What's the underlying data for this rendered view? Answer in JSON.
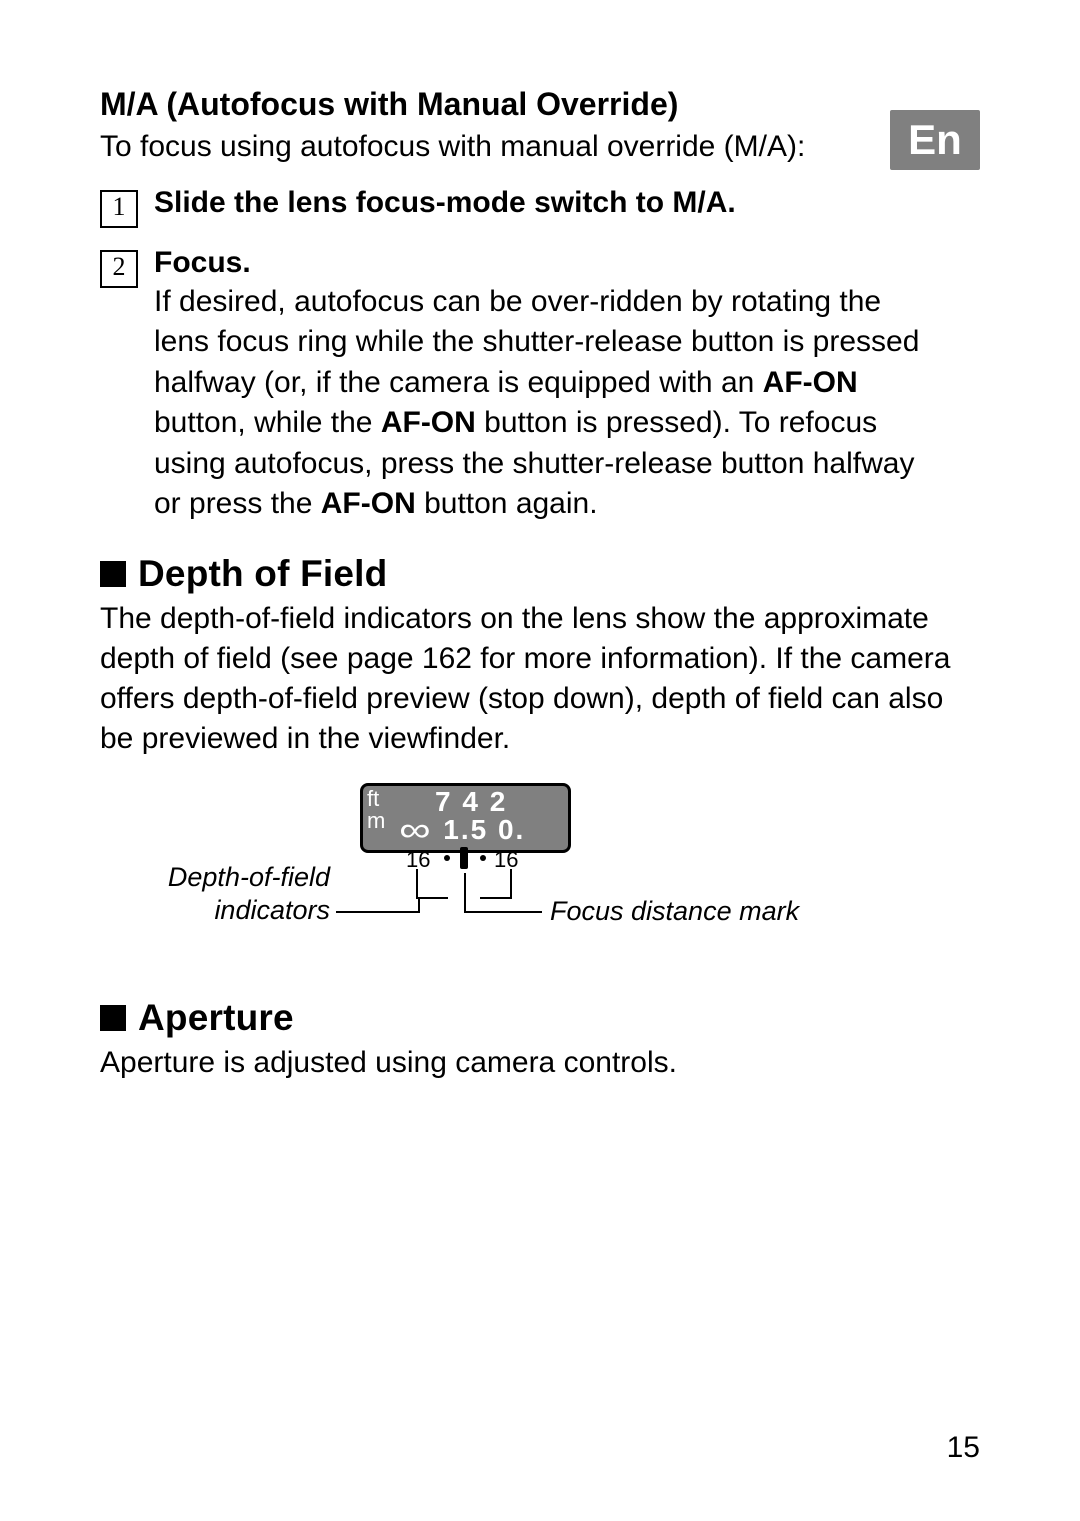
{
  "lang_tab": "En",
  "page_number": "15",
  "ma_section": {
    "heading": "M/A (Autofocus with Manual Override)",
    "intro": "To focus using autofocus with manual override (M/A):",
    "steps": [
      {
        "num": "1",
        "title": "Slide the lens focus-mode switch to M/A.",
        "body_segments": []
      },
      {
        "num": "2",
        "title": "Focus.",
        "body_segments": [
          {
            "text": "If desired, autofocus can be over-ridden by rotating the lens focus ring while the shutter-release button is pressed halfway (or, if the camera is equipped with an ",
            "bold": false
          },
          {
            "text": "AF-ON",
            "bold": true
          },
          {
            "text": " button, while the ",
            "bold": false
          },
          {
            "text": "AF-ON",
            "bold": true
          },
          {
            "text": " button is pressed).  To refocus using autofocus, press the shutter-release button halfway or press the ",
            "bold": false
          },
          {
            "text": "AF-ON",
            "bold": true
          },
          {
            "text": " button again.",
            "bold": false
          }
        ]
      }
    ]
  },
  "dof_section": {
    "heading": "Depth of Field",
    "body": "The depth-of-field indicators on the lens show the approximate depth of field (see page 162 for more information).  If the camera offers depth-of-field preview (stop down), depth of field can also be previewed in the viewfinder.",
    "diagram": {
      "unit_top": "ft",
      "unit_bottom": "m",
      "ft_scale": "7    4   2",
      "m_scale_tail": "1.5   0.",
      "dof_left_value": "16",
      "dof_right_value": "16",
      "callout_left_line1": "Depth-of-field",
      "callout_left_line2": "indicators",
      "callout_right": "Focus distance mark",
      "colors": {
        "window_fill": "#808080",
        "window_border": "#000000",
        "scale_text": "#ffffff",
        "line_color": "#000000",
        "page_background": "#ffffff"
      }
    }
  },
  "aperture_section": {
    "heading": "Aperture",
    "body": "Aperture is adjusted using camera controls."
  }
}
